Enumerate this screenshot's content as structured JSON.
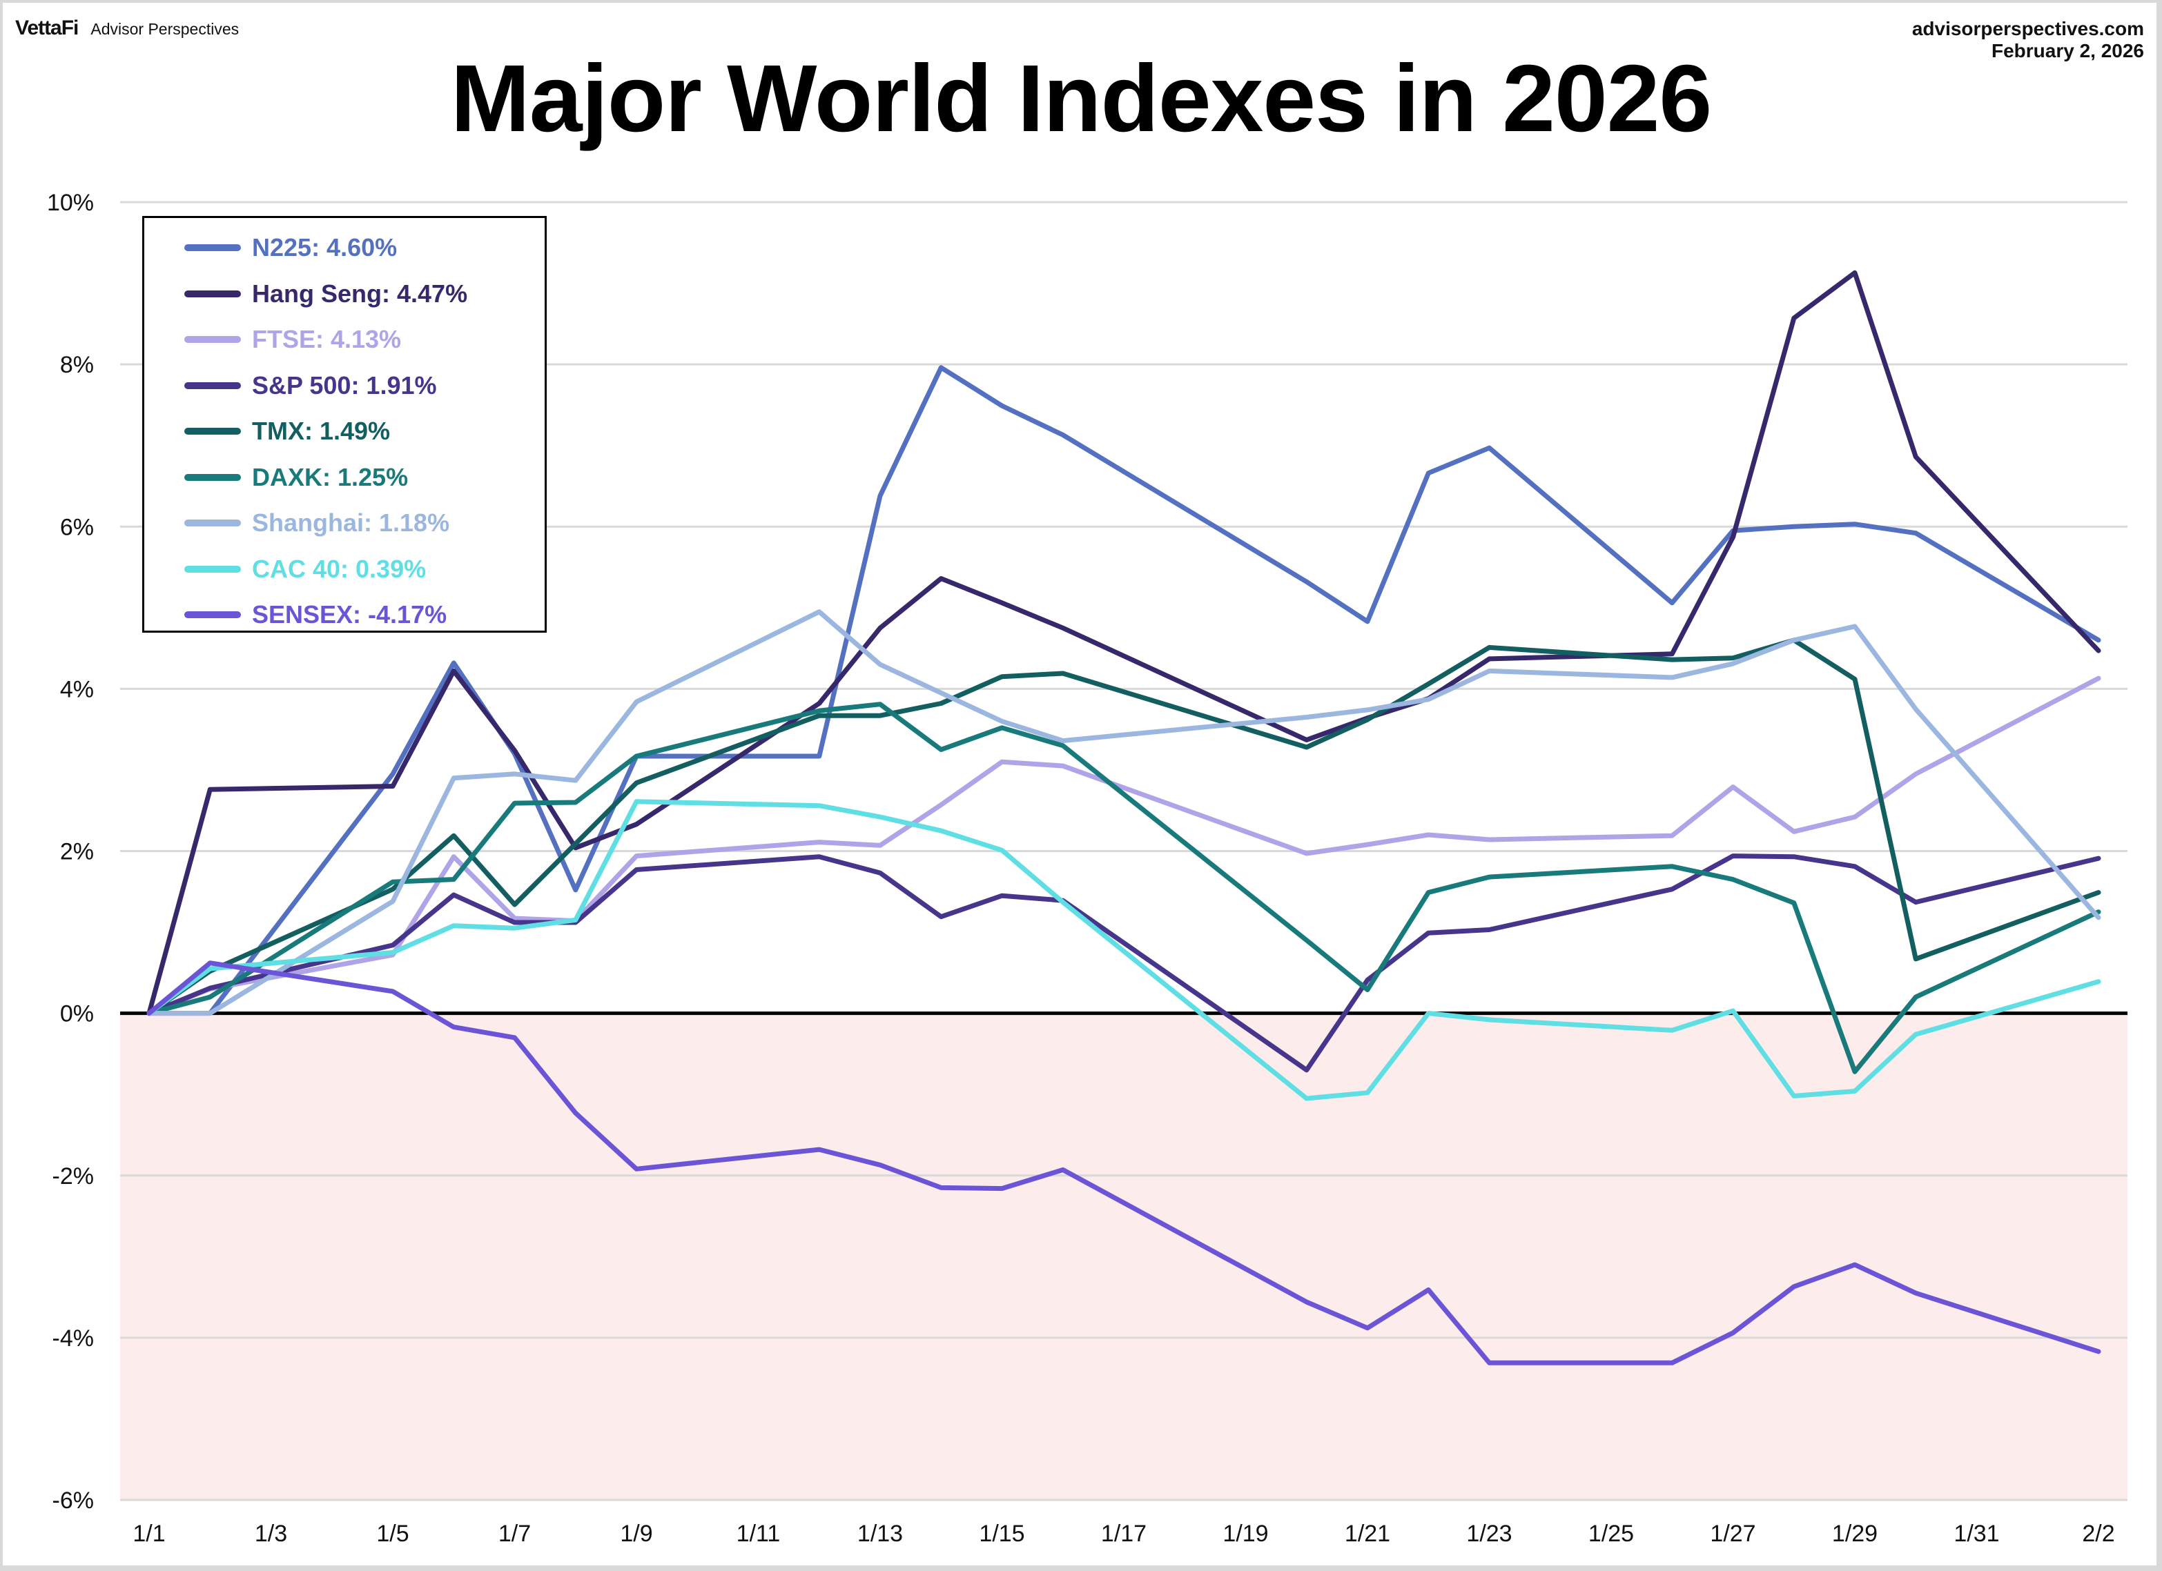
{
  "header": {
    "brand_logo": "VettaFi",
    "brand_name": "Advisor Perspectives",
    "source_site": "advisorperspectives.com",
    "date": "February 2, 2026"
  },
  "chart_data": {
    "type": "line",
    "title": "Major World Indexes in 2026",
    "xlabel": "",
    "ylabel": "",
    "ylim": [
      -6,
      10
    ],
    "y_ticks": [
      10,
      8,
      6,
      4,
      2,
      0,
      -2,
      -4,
      -6
    ],
    "y_tick_labels": [
      "10%",
      "8%",
      "6%",
      "4%",
      "2%",
      "0%",
      "-2%",
      "-4%",
      "-6%"
    ],
    "x_tick_labels": [
      "1/1",
      "1/3",
      "1/5",
      "1/7",
      "1/9",
      "1/11",
      "1/13",
      "1/15",
      "1/17",
      "1/19",
      "1/21",
      "1/23",
      "1/25",
      "1/27",
      "1/29",
      "1/31",
      "2/2"
    ],
    "x_tick_day_index": [
      0,
      2,
      4,
      6,
      8,
      10,
      12,
      14,
      16,
      18,
      20,
      22,
      24,
      26,
      28,
      30,
      32
    ],
    "x_days_range": [
      0,
      32
    ],
    "grid": true,
    "negative_region_shaded": true,
    "negative_region_color": "#fdecec",
    "zero_line_color": "#000000",
    "legend_position": "top-left",
    "x": [
      "1/1",
      "1/2",
      "1/5",
      "1/6",
      "1/7",
      "1/8",
      "1/9",
      "1/12",
      "1/13",
      "1/14",
      "1/15",
      "1/16",
      "1/20",
      "1/21",
      "1/22",
      "1/23",
      "1/26",
      "1/27",
      "1/28",
      "1/29",
      "1/30",
      "2/2"
    ],
    "x_day_index": [
      0,
      1,
      4,
      5,
      6,
      7,
      8,
      11,
      12,
      13,
      14,
      15,
      19,
      20,
      21,
      22,
      25,
      26,
      27,
      28,
      29,
      32
    ],
    "series": [
      {
        "name": "N225",
        "legend_label": "N225: 4.60%",
        "color": "#5470c0",
        "values": [
          0.0,
          0.0,
          2.95,
          4.32,
          3.2,
          1.52,
          3.17,
          3.17,
          6.38,
          7.96,
          7.49,
          7.13,
          5.32,
          4.83,
          6.66,
          6.97,
          5.06,
          5.95,
          6.0,
          6.03,
          5.92,
          4.6
        ]
      },
      {
        "name": "Hang Seng",
        "legend_label": "Hang Seng: 4.47%",
        "color": "#36286b",
        "values": [
          0.0,
          2.76,
          2.8,
          4.22,
          3.24,
          2.04,
          2.33,
          3.82,
          4.75,
          5.36,
          5.06,
          4.75,
          3.37,
          3.64,
          3.88,
          4.37,
          4.43,
          5.87,
          8.57,
          9.13,
          6.86,
          4.47
        ]
      },
      {
        "name": "FTSE",
        "legend_label": "FTSE: 4.13%",
        "color": "#b0a3e8",
        "values": [
          0.0,
          0.3,
          0.72,
          1.93,
          1.17,
          1.14,
          1.94,
          2.11,
          2.07,
          2.57,
          3.1,
          3.05,
          1.97,
          2.08,
          2.2,
          2.14,
          2.19,
          2.79,
          2.24,
          2.42,
          2.95,
          4.13
        ]
      },
      {
        "name": "S&P 500",
        "legend_label": "S&P 500: 1.91%",
        "color": "#46358b",
        "values": [
          0.0,
          0.31,
          0.84,
          1.46,
          1.12,
          1.12,
          1.77,
          1.93,
          1.73,
          1.19,
          1.45,
          1.39,
          -0.7,
          0.41,
          0.99,
          1.03,
          1.53,
          1.94,
          1.93,
          1.81,
          1.37,
          1.91
        ]
      },
      {
        "name": "TMX",
        "legend_label": "TMX: 1.49%",
        "color": "#135e60",
        "values": [
          0.0,
          0.52,
          1.53,
          2.19,
          1.34,
          2.09,
          2.84,
          3.67,
          3.67,
          3.82,
          4.15,
          4.19,
          3.28,
          3.62,
          4.06,
          4.51,
          4.36,
          4.38,
          4.6,
          4.12,
          0.67,
          1.49
        ]
      },
      {
        "name": "DAXK",
        "legend_label": "DAXK: 1.25%",
        "color": "#187a7a",
        "values": [
          0.0,
          0.2,
          1.62,
          1.65,
          2.59,
          2.6,
          3.17,
          3.73,
          3.81,
          3.25,
          3.52,
          3.3,
          0.9,
          0.29,
          1.49,
          1.68,
          1.81,
          1.65,
          1.36,
          -0.72,
          0.2,
          1.25
        ]
      },
      {
        "name": "Shanghai",
        "legend_label": "Shanghai: 1.18%",
        "color": "#9bb6df",
        "values": [
          0.0,
          0.0,
          1.38,
          2.9,
          2.95,
          2.87,
          3.84,
          4.95,
          4.3,
          3.95,
          3.6,
          3.36,
          3.65,
          3.74,
          3.87,
          4.22,
          4.14,
          4.31,
          4.6,
          4.77,
          3.75,
          1.18
        ]
      },
      {
        "name": "CAC 40",
        "legend_label": "CAC 40: 0.39%",
        "color": "#5fdfe3",
        "values": [
          0.0,
          0.55,
          0.75,
          1.08,
          1.05,
          1.15,
          2.61,
          2.56,
          2.42,
          2.25,
          2.01,
          1.37,
          -1.05,
          -0.98,
          0.0,
          -0.08,
          -0.21,
          0.03,
          -1.02,
          -0.96,
          -0.26,
          0.39
        ]
      },
      {
        "name": "SENSEX",
        "legend_label": "SENSEX: -4.17%",
        "color": "#6b54d6",
        "values": [
          0.0,
          0.62,
          0.27,
          -0.17,
          -0.3,
          -1.23,
          -1.92,
          -1.68,
          -1.87,
          -2.15,
          -2.16,
          -1.93,
          -3.56,
          -3.88,
          -3.41,
          -4.31,
          -4.31,
          -3.94,
          -3.37,
          -3.1,
          -3.45,
          -4.17
        ]
      }
    ]
  }
}
